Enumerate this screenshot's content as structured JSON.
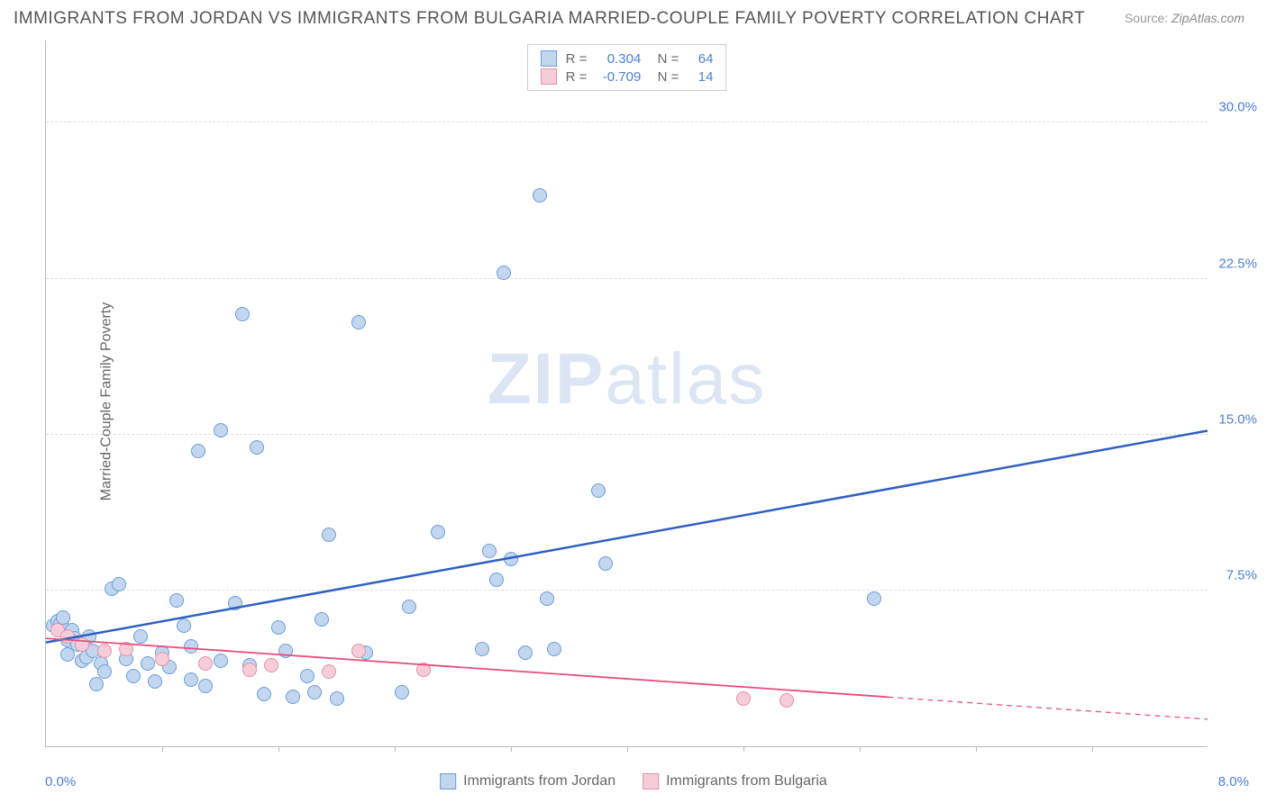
{
  "title": "IMMIGRANTS FROM JORDAN VS IMMIGRANTS FROM BULGARIA MARRIED-COUPLE FAMILY POVERTY CORRELATION CHART",
  "source_label": "Source:",
  "source_value": "ZipAtlas.com",
  "ylabel": "Married-Couple Family Poverty",
  "watermark_bold": "ZIP",
  "watermark_rest": "atlas",
  "chart": {
    "type": "scatter",
    "xlim": [
      0.0,
      8.0
    ],
    "ylim": [
      0.0,
      34.0
    ],
    "x_unit": "%",
    "y_unit": "%",
    "yticks": [
      7.5,
      15.0,
      22.5,
      30.0
    ],
    "ytick_labels": [
      "7.5%",
      "15.0%",
      "22.5%",
      "30.0%"
    ],
    "xtick_positions": [
      0.8,
      1.6,
      2.4,
      3.2,
      4.0,
      4.8,
      5.6,
      6.4,
      7.2
    ],
    "xlim_left_label": "0.0%",
    "xlim_right_label": "8.0%",
    "background_color": "#ffffff",
    "grid_color": "#dddddd",
    "axis_color": "#bbbbbb",
    "tick_label_color": "#4a7fd6",
    "title_color": "#555555",
    "title_fontsize": 19,
    "ylabel_fontsize": 16,
    "tick_fontsize": 15,
    "marker_radius": 8,
    "marker_border_width": 1,
    "series": [
      {
        "name": "Immigrants from Jordan",
        "fill": "#c2d6f0",
        "stroke": "#6b9cd8",
        "trend_color": "#2f5fc2",
        "trend_width": 2.5,
        "R": 0.304,
        "N": 64,
        "trend": {
          "x1": 0.0,
          "y1": 5.0,
          "x2": 8.0,
          "y2": 15.2,
          "solid_until_x": 8.0
        },
        "points": [
          [
            0.05,
            5.8
          ],
          [
            0.08,
            6.0
          ],
          [
            0.1,
            5.9
          ],
          [
            0.12,
            5.7
          ],
          [
            0.12,
            6.2
          ],
          [
            0.15,
            5.1
          ],
          [
            0.15,
            4.4
          ],
          [
            0.18,
            5.6
          ],
          [
            0.2,
            5.2
          ],
          [
            0.22,
            4.9
          ],
          [
            0.25,
            4.1
          ],
          [
            0.28,
            4.3
          ],
          [
            0.3,
            5.3
          ],
          [
            0.32,
            4.6
          ],
          [
            0.35,
            3.0
          ],
          [
            0.38,
            4.0
          ],
          [
            0.4,
            3.6
          ],
          [
            0.45,
            7.6
          ],
          [
            0.5,
            7.8
          ],
          [
            0.55,
            4.2
          ],
          [
            0.6,
            3.4
          ],
          [
            0.65,
            5.3
          ],
          [
            0.7,
            4.0
          ],
          [
            0.75,
            3.1
          ],
          [
            0.8,
            4.5
          ],
          [
            0.85,
            3.8
          ],
          [
            0.9,
            7.0
          ],
          [
            0.95,
            5.8
          ],
          [
            1.0,
            3.2
          ],
          [
            1.0,
            4.8
          ],
          [
            1.05,
            14.2
          ],
          [
            1.1,
            2.9
          ],
          [
            1.2,
            15.2
          ],
          [
            1.2,
            4.1
          ],
          [
            1.3,
            6.9
          ],
          [
            1.35,
            20.8
          ],
          [
            1.4,
            3.9
          ],
          [
            1.45,
            14.4
          ],
          [
            1.5,
            2.5
          ],
          [
            1.6,
            5.7
          ],
          [
            1.65,
            4.6
          ],
          [
            1.7,
            2.4
          ],
          [
            1.8,
            3.4
          ],
          [
            1.85,
            2.6
          ],
          [
            1.9,
            6.1
          ],
          [
            1.95,
            10.2
          ],
          [
            2.0,
            2.3
          ],
          [
            2.15,
            20.4
          ],
          [
            2.2,
            4.5
          ],
          [
            2.45,
            2.6
          ],
          [
            2.5,
            6.7
          ],
          [
            2.7,
            10.3
          ],
          [
            3.0,
            4.7
          ],
          [
            3.05,
            9.4
          ],
          [
            3.1,
            8.0
          ],
          [
            3.15,
            22.8
          ],
          [
            3.2,
            9.0
          ],
          [
            3.3,
            4.5
          ],
          [
            3.4,
            26.5
          ],
          [
            3.45,
            7.1
          ],
          [
            3.5,
            4.7
          ],
          [
            3.8,
            12.3
          ],
          [
            3.85,
            8.8
          ],
          [
            5.7,
            7.1
          ]
        ]
      },
      {
        "name": "Immigrants from Bulgaria",
        "fill": "#f5cdd8",
        "stroke": "#e68fa8",
        "trend_color": "#e84d7a",
        "trend_width": 1.8,
        "R": -0.709,
        "N": 14,
        "trend": {
          "x1": 0.0,
          "y1": 5.2,
          "x2": 8.0,
          "y2": 1.3,
          "solid_until_x": 5.8
        },
        "points": [
          [
            0.08,
            5.6
          ],
          [
            0.15,
            5.3
          ],
          [
            0.25,
            4.9
          ],
          [
            0.4,
            4.6
          ],
          [
            0.55,
            4.7
          ],
          [
            0.8,
            4.2
          ],
          [
            1.1,
            4.0
          ],
          [
            1.4,
            3.7
          ],
          [
            1.55,
            3.9
          ],
          [
            1.95,
            3.6
          ],
          [
            2.15,
            4.6
          ],
          [
            2.6,
            3.7
          ],
          [
            4.8,
            2.3
          ],
          [
            5.1,
            2.2
          ]
        ]
      }
    ]
  },
  "legend_bottom": [
    {
      "label": "Immigrants from Jordan",
      "fill": "#c2d6f0",
      "stroke": "#6b9cd8"
    },
    {
      "label": "Immigrants from Bulgaria",
      "fill": "#f5cdd8",
      "stroke": "#e68fa8"
    }
  ],
  "legend_top": [
    {
      "fill": "#c2d6f0",
      "stroke": "#6b9cd8",
      "R": "0.304",
      "N": "64"
    },
    {
      "fill": "#f5cdd8",
      "stroke": "#e68fa8",
      "R": "-0.709",
      "N": "14"
    }
  ]
}
